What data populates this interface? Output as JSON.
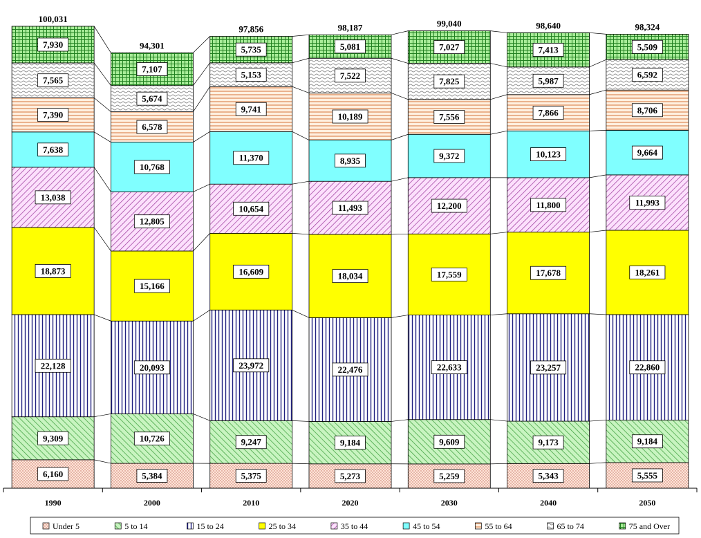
{
  "chart_data": {
    "type": "bar",
    "stacked": true,
    "categories": [
      "1990",
      "2000",
      "2010",
      "2020",
      "2030",
      "2040",
      "2050"
    ],
    "totals": [
      "100,031",
      "94,301",
      "97,856",
      "98,187",
      "99,040",
      "98,640",
      "98,324"
    ],
    "series": [
      {
        "name": "Under 5",
        "values": [
          6160,
          5384,
          5375,
          5273,
          5259,
          5343,
          5555
        ]
      },
      {
        "name": "5 to 14",
        "values": [
          9309,
          10726,
          9247,
          9184,
          9609,
          9173,
          9184
        ]
      },
      {
        "name": "15 to 24",
        "values": [
          22128,
          20093,
          23972,
          22476,
          22633,
          23257,
          22860
        ]
      },
      {
        "name": "25 to 34",
        "values": [
          18873,
          15166,
          16609,
          18034,
          17559,
          17678,
          18261
        ]
      },
      {
        "name": "35 to 44",
        "values": [
          13038,
          12805,
          10654,
          11493,
          12200,
          11800,
          11993
        ]
      },
      {
        "name": "45 to 54",
        "values": [
          7638,
          10768,
          11370,
          8935,
          9372,
          10123,
          9664
        ]
      },
      {
        "name": "55 to 64",
        "values": [
          7390,
          6578,
          9741,
          10189,
          7556,
          7866,
          8706
        ]
      },
      {
        "name": "65 to 74",
        "values": [
          7565,
          5674,
          5153,
          7522,
          7825,
          5987,
          6592
        ]
      },
      {
        "name": "75 and Over",
        "values": [
          7930,
          7107,
          5735,
          5081,
          7027,
          7413,
          5509
        ]
      }
    ],
    "series_colors": [
      "#ffd8c8",
      "#b8f0b0",
      "#ffffff",
      "#ffff00",
      "#f8c8f8",
      "#80ffff",
      "#ffe0c0",
      "#ffffff",
      "#90e890"
    ],
    "series_patterns": [
      "dots",
      "diag-green",
      "vlines-blue",
      "solid",
      "diag-purple",
      "solid",
      "hlines-orange",
      "waves",
      "grid-green"
    ],
    "ylim": [
      0,
      100031
    ],
    "grid": false,
    "legend_position": "bottom",
    "xlabel": "",
    "ylabel": ""
  }
}
